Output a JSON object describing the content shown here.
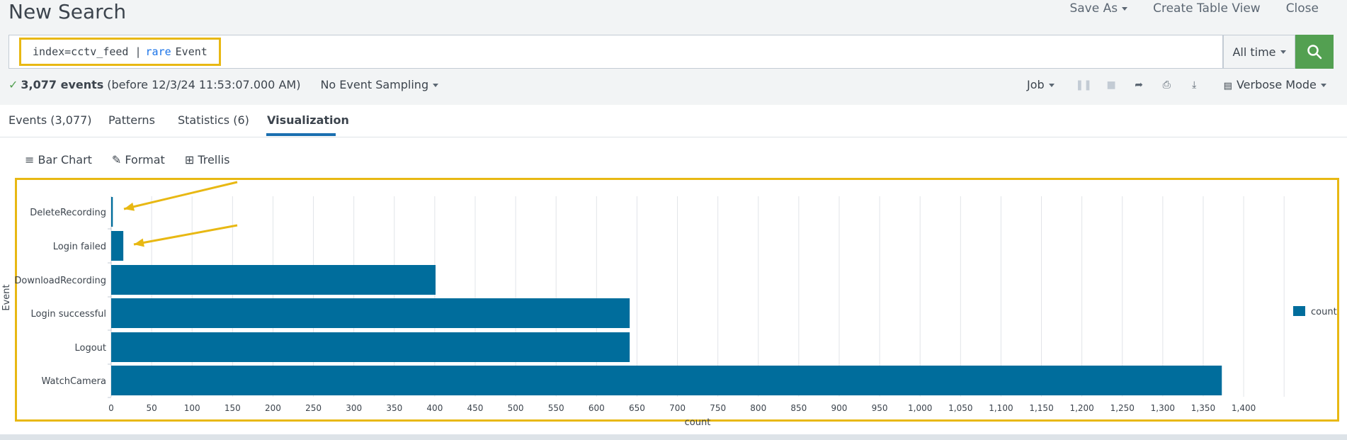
{
  "header": {
    "title": "New Search",
    "actions": {
      "save_as": "Save As",
      "create_table_view": "Create Table View",
      "close": "Close"
    }
  },
  "search": {
    "query_prefix": "index=cctv_feed |",
    "query_command": "rare",
    "query_suffix": "Event",
    "time_range": "All time"
  },
  "status": {
    "check": "✓",
    "events_count": "3,077 events",
    "before_text": "(before 12/3/24 11:53:07.000 AM)",
    "sampling": "No Event Sampling",
    "job": "Job",
    "mode": "Verbose Mode"
  },
  "tabs": [
    {
      "label": "Events (3,077)",
      "active": false
    },
    {
      "label": "Patterns",
      "active": false
    },
    {
      "label": "Statistics (6)",
      "active": false
    },
    {
      "label": "Visualization",
      "active": true
    }
  ],
  "viz_tools": {
    "bar_chart": "Bar Chart",
    "format": "Format",
    "trellis": "Trellis"
  },
  "colors": {
    "bar": "#006d9c",
    "accent": "#e8b813",
    "search_button": "#53a051"
  },
  "chart_data": {
    "type": "bar",
    "orientation": "horizontal",
    "categories": [
      "DeleteRecording",
      "Login failed",
      "DownloadRecording",
      "Login successful",
      "Logout",
      "WatchCamera"
    ],
    "series": [
      {
        "name": "count",
        "values": [
          2,
          15,
          401,
          641,
          641,
          1373
        ]
      }
    ],
    "xlabel": "count",
    "ylabel": "Event",
    "xlim": [
      0,
      1450
    ],
    "x_ticks": [
      0,
      50,
      100,
      150,
      200,
      250,
      300,
      350,
      400,
      450,
      500,
      550,
      600,
      650,
      700,
      750,
      800,
      850,
      900,
      950,
      1000,
      1050,
      1100,
      1150,
      1200,
      1250,
      1300,
      1350,
      1400
    ],
    "x_tick_labels": [
      "0",
      "50",
      "100",
      "150",
      "200",
      "250",
      "300",
      "350",
      "400",
      "450",
      "500",
      "550",
      "600",
      "650",
      "700",
      "750",
      "800",
      "850",
      "900",
      "950",
      "1,000",
      "1,050",
      "1,100",
      "1,150",
      "1,200",
      "1,250",
      "1,300",
      "1,350",
      "1,400"
    ],
    "grid": true,
    "legend": "right",
    "annotations": [
      "arrow pointing to DeleteRecording",
      "arrow pointing to Login failed"
    ]
  }
}
